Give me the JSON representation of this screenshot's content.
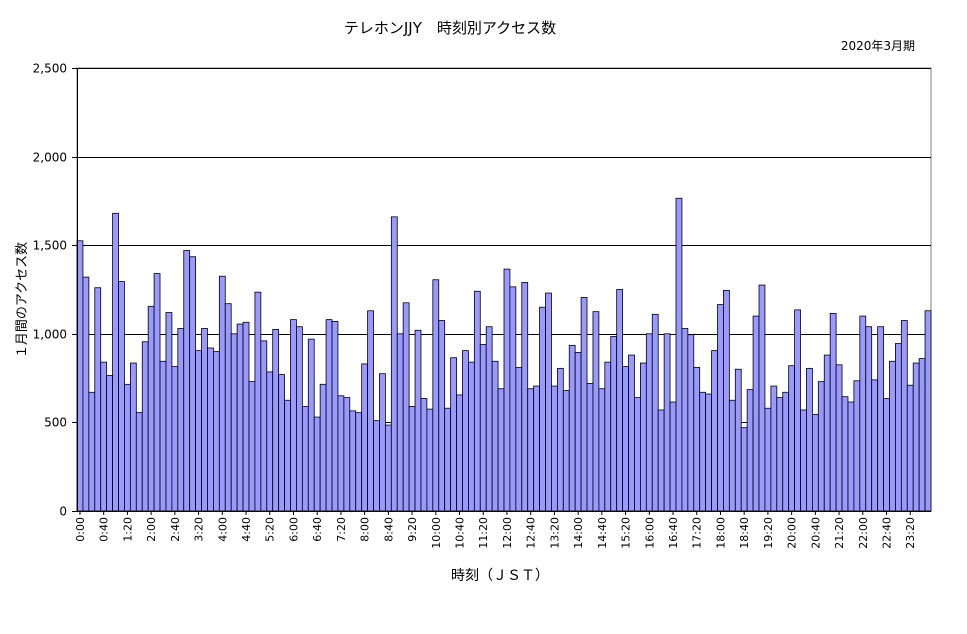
{
  "chart_data": {
    "type": "bar",
    "title": "テレホンJJY　時刻別アクセス数",
    "subtitle": "2020年3月期",
    "xlabel": "時刻（ＪＳＴ）",
    "ylabel": "１月間のアクセス数",
    "ylim": [
      0,
      2500
    ],
    "yticks": [
      0,
      500,
      1000,
      1500,
      2000,
      2500
    ],
    "ytick_labels": [
      "0",
      "500",
      "1,000",
      "1,500",
      "2,000",
      "2,500"
    ],
    "xtick_labels": [
      "0:00",
      "0:40",
      "1:20",
      "2:00",
      "2:40",
      "3:20",
      "4:00",
      "4:40",
      "5:20",
      "6:00",
      "6:40",
      "7:20",
      "8:00",
      "8:40",
      "9:20",
      "10:00",
      "10:40",
      "11:20",
      "12:00",
      "12:40",
      "13:20",
      "14:00",
      "14:40",
      "15:20",
      "16:00",
      "16:40",
      "17:20",
      "18:00",
      "18:40",
      "19:20",
      "20:00",
      "20:40",
      "21:20",
      "22:00",
      "22:40",
      "23:20"
    ],
    "grid": true,
    "legend": "none",
    "bar_color": "#9999FF",
    "interval_minutes": 10,
    "values": [
      1525,
      1320,
      670,
      1260,
      840,
      765,
      1680,
      1295,
      715,
      835,
      555,
      955,
      1155,
      1340,
      845,
      1120,
      815,
      1030,
      1470,
      1435,
      905,
      1030,
      920,
      900,
      1325,
      1170,
      1000,
      1055,
      1065,
      730,
      1235,
      960,
      785,
      1025,
      770,
      625,
      1080,
      1040,
      590,
      970,
      530,
      715,
      1080,
      1070,
      650,
      640,
      565,
      555,
      830,
      1130,
      510,
      775,
      485,
      1660,
      1000,
      1175,
      590,
      1020,
      635,
      575,
      1305,
      1075,
      580,
      865,
      655,
      905,
      840,
      1240,
      940,
      1040,
      845,
      690,
      1365,
      1265,
      810,
      1290,
      690,
      705,
      1150,
      1230,
      705,
      805,
      680,
      935,
      895,
      1205,
      720,
      1125,
      690,
      840,
      985,
      1250,
      815,
      880,
      640,
      835,
      1000,
      1110,
      570,
      1000,
      615,
      1765,
      1030,
      995,
      810,
      670,
      660,
      905,
      1165,
      1245,
      625,
      800,
      470,
      685,
      1100,
      1275,
      580,
      705,
      640,
      670,
      820,
      1135,
      570,
      805,
      545,
      730,
      880,
      1115,
      825,
      645,
      615,
      735,
      1100,
      1040,
      740,
      1040,
      635,
      845,
      945,
      1075,
      710,
      835,
      860,
      1130
    ]
  }
}
